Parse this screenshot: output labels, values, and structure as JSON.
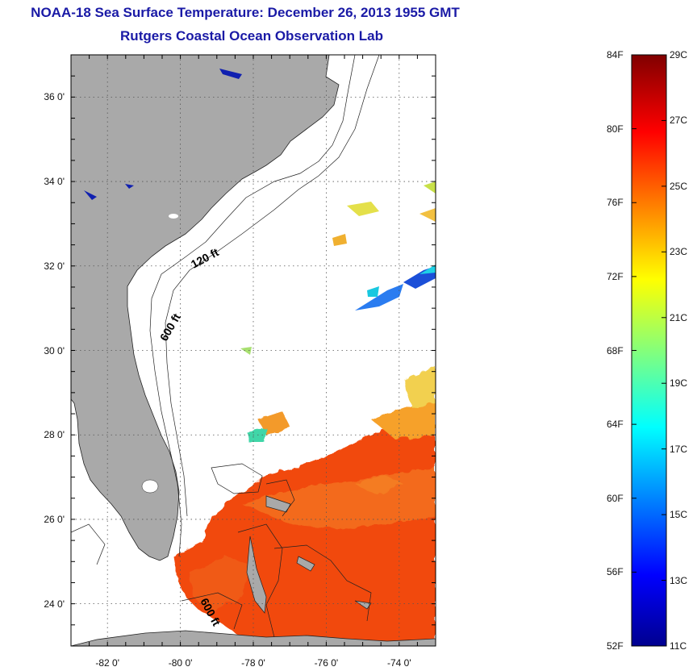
{
  "title": {
    "line1": "NOAA-18 Sea Surface Temperature:  December 26, 2013 1955 GMT",
    "line2": "Rutgers Coastal Ocean Observation Lab"
  },
  "map": {
    "latitude_ticks": [
      {
        "value": 36,
        "label": "36 0'"
      },
      {
        "value": 34,
        "label": "34 0'"
      },
      {
        "value": 32,
        "label": "32 0'"
      },
      {
        "value": 30,
        "label": "30 0'"
      },
      {
        "value": 28,
        "label": "28 0'"
      },
      {
        "value": 26,
        "label": "26 0'"
      },
      {
        "value": 24,
        "label": "24 0'"
      }
    ],
    "longitude_ticks": [
      {
        "value": -82,
        "label": "-82 0'"
      },
      {
        "value": -80,
        "label": "-80 0'"
      },
      {
        "value": -78,
        "label": "-78 0'"
      },
      {
        "value": -76,
        "label": "-76 0'"
      },
      {
        "value": -74,
        "label": "-74 0'"
      }
    ],
    "lat_range": [
      23,
      37
    ],
    "lon_range": [
      -83,
      -73
    ],
    "contour_labels": [
      {
        "text": "120 ft"
      },
      {
        "text": "600 ft"
      },
      {
        "text": "600 ft"
      }
    ],
    "land_color": "#a9a9a9",
    "ocean_no_data_color": "#ffffff"
  },
  "colorbar": {
    "fahrenheit_labels": [
      "84F",
      "80F",
      "76F",
      "72F",
      "68F",
      "64F",
      "60F",
      "56F",
      "52F"
    ],
    "celsius_labels": [
      "29C",
      "27C",
      "25C",
      "23C",
      "21C",
      "19C",
      "17C",
      "15C",
      "13C",
      "11C"
    ],
    "celsius_range": [
      11,
      29
    ],
    "colormap": "jet",
    "colors": [
      "#00008f",
      "#0000ff",
      "#00ffff",
      "#ffff00",
      "#ff0000",
      "#800000"
    ]
  }
}
